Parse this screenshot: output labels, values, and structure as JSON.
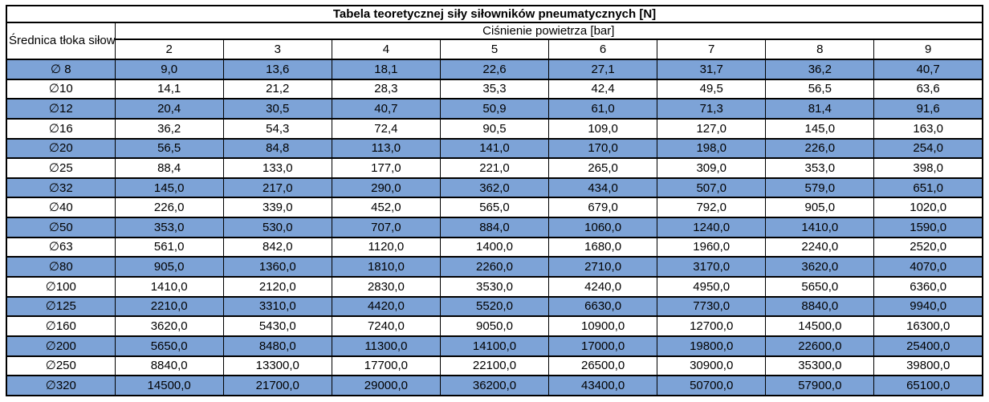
{
  "table": {
    "title": "Tabela teoretycznej siły siłowników pneumatycznych [N]",
    "diameter_header": "Średnica tłoka siłownika",
    "pressure_group_label": "Ciśnienie powietrza [bar]",
    "pressures": [
      "2",
      "3",
      "4",
      "5",
      "6",
      "7",
      "8",
      "9"
    ],
    "rows": [
      {
        "label": "∅ 8",
        "highlight": true,
        "values": [
          "9,0",
          "13,6",
          "18,1",
          "22,6",
          "27,1",
          "31,7",
          "36,2",
          "40,7"
        ]
      },
      {
        "label": "∅10",
        "highlight": false,
        "values": [
          "14,1",
          "21,2",
          "28,3",
          "35,3",
          "42,4",
          "49,5",
          "56,5",
          "63,6"
        ]
      },
      {
        "label": "∅12",
        "highlight": true,
        "values": [
          "20,4",
          "30,5",
          "40,7",
          "50,9",
          "61,0",
          "71,3",
          "81,4",
          "91,6"
        ]
      },
      {
        "label": "∅16",
        "highlight": false,
        "values": [
          "36,2",
          "54,3",
          "72,4",
          "90,5",
          "109,0",
          "127,0",
          "145,0",
          "163,0"
        ]
      },
      {
        "label": "∅20",
        "highlight": true,
        "values": [
          "56,5",
          "84,8",
          "113,0",
          "141,0",
          "170,0",
          "198,0",
          "226,0",
          "254,0"
        ]
      },
      {
        "label": "∅25",
        "highlight": false,
        "values": [
          "88,4",
          "133,0",
          "177,0",
          "221,0",
          "265,0",
          "309,0",
          "353,0",
          "398,0"
        ]
      },
      {
        "label": "∅32",
        "highlight": true,
        "values": [
          "145,0",
          "217,0",
          "290,0",
          "362,0",
          "434,0",
          "507,0",
          "579,0",
          "651,0"
        ]
      },
      {
        "label": "∅40",
        "highlight": false,
        "values": [
          "226,0",
          "339,0",
          "452,0",
          "565,0",
          "679,0",
          "792,0",
          "905,0",
          "1020,0"
        ]
      },
      {
        "label": "∅50",
        "highlight": true,
        "values": [
          "353,0",
          "530,0",
          "707,0",
          "884,0",
          "1060,0",
          "1240,0",
          "1410,0",
          "1590,0"
        ]
      },
      {
        "label": "∅63",
        "highlight": false,
        "values": [
          "561,0",
          "842,0",
          "1120,0",
          "1400,0",
          "1680,0",
          "1960,0",
          "2240,0",
          "2520,0"
        ]
      },
      {
        "label": "∅80",
        "highlight": true,
        "values": [
          "905,0",
          "1360,0",
          "1810,0",
          "2260,0",
          "2710,0",
          "3170,0",
          "3620,0",
          "4070,0"
        ]
      },
      {
        "label": "∅100",
        "highlight": false,
        "values": [
          "1410,0",
          "2120,0",
          "2830,0",
          "3530,0",
          "4240,0",
          "4950,0",
          "5650,0",
          "6360,0"
        ]
      },
      {
        "label": "∅125",
        "highlight": true,
        "values": [
          "2210,0",
          "3310,0",
          "4420,0",
          "5520,0",
          "6630,0",
          "7730,0",
          "8840,0",
          "9940,0"
        ]
      },
      {
        "label": "∅160",
        "highlight": false,
        "values": [
          "3620,0",
          "5430,0",
          "7240,0",
          "9050,0",
          "10900,0",
          "12700,0",
          "14500,0",
          "16300,0"
        ]
      },
      {
        "label": "∅200",
        "highlight": true,
        "values": [
          "5650,0",
          "8480,0",
          "11300,0",
          "14100,0",
          "17000,0",
          "19800,0",
          "22600,0",
          "25400,0"
        ]
      },
      {
        "label": "∅250",
        "highlight": false,
        "values": [
          "8840,0",
          "13300,0",
          "17700,0",
          "22100,0",
          "26500,0",
          "30900,0",
          "35300,0",
          "39800,0"
        ]
      },
      {
        "label": "∅320",
        "highlight": true,
        "values": [
          "14500,0",
          "21700,0",
          "29000,0",
          "36200,0",
          "43400,0",
          "50700,0",
          "57900,0",
          "65100,0"
        ]
      }
    ]
  },
  "colors": {
    "row_highlight": "#7da3d7",
    "border": "#000000",
    "text": "#000000",
    "background": "#ffffff"
  },
  "chart_data": {
    "type": "table",
    "title": "Tabela teoretycznej siły siłowników pneumatycznych [N]",
    "row_header": "Średnica tłoka siłownika",
    "column_group": "Ciśnienie powietrza [bar]",
    "columns": [
      2,
      3,
      4,
      5,
      6,
      7,
      8,
      9
    ],
    "row_labels": [
      "∅ 8",
      "∅10",
      "∅12",
      "∅16",
      "∅20",
      "∅25",
      "∅32",
      "∅40",
      "∅50",
      "∅63",
      "∅80",
      "∅100",
      "∅125",
      "∅160",
      "∅200",
      "∅250",
      "∅320"
    ],
    "values": [
      [
        9.0,
        13.6,
        18.1,
        22.6,
        27.1,
        31.7,
        36.2,
        40.7
      ],
      [
        14.1,
        21.2,
        28.3,
        35.3,
        42.4,
        49.5,
        56.5,
        63.6
      ],
      [
        20.4,
        30.5,
        40.7,
        50.9,
        61.0,
        71.3,
        81.4,
        91.6
      ],
      [
        36.2,
        54.3,
        72.4,
        90.5,
        109.0,
        127.0,
        145.0,
        163.0
      ],
      [
        56.5,
        84.8,
        113.0,
        141.0,
        170.0,
        198.0,
        226.0,
        254.0
      ],
      [
        88.4,
        133.0,
        177.0,
        221.0,
        265.0,
        309.0,
        353.0,
        398.0
      ],
      [
        145.0,
        217.0,
        290.0,
        362.0,
        434.0,
        507.0,
        579.0,
        651.0
      ],
      [
        226.0,
        339.0,
        452.0,
        565.0,
        679.0,
        792.0,
        905.0,
        1020.0
      ],
      [
        353.0,
        530.0,
        707.0,
        884.0,
        1060.0,
        1240.0,
        1410.0,
        1590.0
      ],
      [
        561.0,
        842.0,
        1120.0,
        1400.0,
        1680.0,
        1960.0,
        2240.0,
        2520.0
      ],
      [
        905.0,
        1360.0,
        1810.0,
        2260.0,
        2710.0,
        3170.0,
        3620.0,
        4070.0
      ],
      [
        1410.0,
        2120.0,
        2830.0,
        3530.0,
        4240.0,
        4950.0,
        5650.0,
        6360.0
      ],
      [
        2210.0,
        3310.0,
        4420.0,
        5520.0,
        6630.0,
        7730.0,
        8840.0,
        9940.0
      ],
      [
        3620.0,
        5430.0,
        7240.0,
        9050.0,
        10900.0,
        12700.0,
        14500.0,
        16300.0
      ],
      [
        5650.0,
        8480.0,
        11300.0,
        14100.0,
        17000.0,
        19800.0,
        22600.0,
        25400.0
      ],
      [
        8840.0,
        13300.0,
        17700.0,
        22100.0,
        26500.0,
        30900.0,
        35300.0,
        39800.0
      ],
      [
        14500.0,
        21700.0,
        29000.0,
        36200.0,
        43400.0,
        50700.0,
        57900.0,
        65100.0
      ]
    ]
  }
}
